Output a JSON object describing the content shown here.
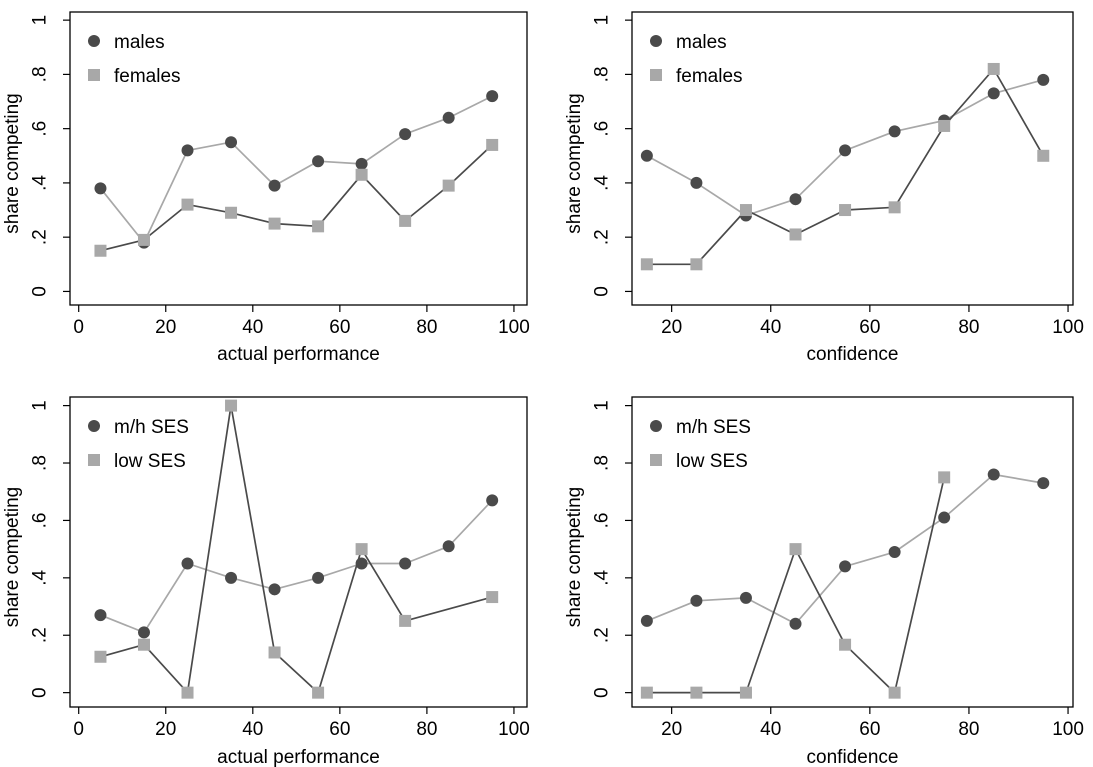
{
  "colors": {
    "dark": "#4a4a4a",
    "light": "#a8a8a8",
    "frame": "#000000",
    "background": "#ffffff"
  },
  "chart_data": [
    {
      "type": "line",
      "xlabel": "actual performance",
      "ylabel": "share competing",
      "xlim": [
        -2,
        103
      ],
      "ylim": [
        -0.05,
        1.03
      ],
      "xticks": [
        0,
        20,
        40,
        60,
        80,
        100
      ],
      "xtick_labels": [
        "0",
        "20",
        "40",
        "60",
        "80",
        "100"
      ],
      "yticks": [
        0,
        0.2,
        0.4,
        0.6,
        0.8,
        1
      ],
      "ytick_labels": [
        "0",
        ".2",
        ".4",
        ".6",
        ".8",
        "1"
      ],
      "legend_position": "top-left",
      "grid": false,
      "series": [
        {
          "name": "males",
          "marker": "circle",
          "color": "light",
          "markercolor": "dark",
          "x": [
            5,
            15,
            25,
            35,
            45,
            55,
            65,
            75,
            85,
            95
          ],
          "y": [
            0.38,
            0.18,
            0.52,
            0.55,
            0.39,
            0.48,
            0.47,
            0.58,
            0.64,
            0.72
          ]
        },
        {
          "name": "females",
          "marker": "square",
          "color": "dark",
          "markercolor": "light",
          "x": [
            5,
            15,
            25,
            35,
            45,
            55,
            65,
            75,
            85,
            95
          ],
          "y": [
            0.15,
            0.19,
            0.32,
            0.29,
            0.25,
            0.24,
            0.43,
            0.26,
            0.39,
            0.54
          ]
        }
      ]
    },
    {
      "type": "line",
      "xlabel": "confidence",
      "ylabel": "share competing",
      "xlim": [
        12,
        101
      ],
      "ylim": [
        -0.05,
        1.03
      ],
      "xticks": [
        20,
        40,
        60,
        80,
        100
      ],
      "xtick_labels": [
        "20",
        "40",
        "60",
        "80",
        "100"
      ],
      "yticks": [
        0,
        0.2,
        0.4,
        0.6,
        0.8,
        1
      ],
      "ytick_labels": [
        "0",
        ".2",
        ".4",
        ".6",
        ".8",
        "1"
      ],
      "legend_position": "top-left",
      "grid": false,
      "series": [
        {
          "name": "males",
          "marker": "circle",
          "color": "light",
          "markercolor": "dark",
          "x": [
            15,
            25,
            35,
            45,
            55,
            65,
            75,
            85,
            95
          ],
          "y": [
            0.5,
            0.4,
            0.28,
            0.34,
            0.52,
            0.59,
            0.63,
            0.73,
            0.78
          ]
        },
        {
          "name": "females",
          "marker": "square",
          "color": "dark",
          "markercolor": "light",
          "x": [
            15,
            25,
            35,
            45,
            55,
            65,
            75,
            85,
            95
          ],
          "y": [
            0.1,
            0.1,
            0.3,
            0.21,
            0.3,
            0.31,
            0.61,
            0.82,
            0.5
          ]
        }
      ]
    },
    {
      "type": "line",
      "xlabel": "actual performance",
      "ylabel": "share competing",
      "xlim": [
        -2,
        103
      ],
      "ylim": [
        -0.05,
        1.03
      ],
      "xticks": [
        0,
        20,
        40,
        60,
        80,
        100
      ],
      "xtick_labels": [
        "0",
        "20",
        "40",
        "60",
        "80",
        "100"
      ],
      "yticks": [
        0,
        0.2,
        0.4,
        0.6,
        0.8,
        1
      ],
      "ytick_labels": [
        "0",
        ".2",
        ".4",
        ".6",
        ".8",
        "1"
      ],
      "legend_position": "top-left",
      "grid": false,
      "series": [
        {
          "name": "m/h SES",
          "marker": "circle",
          "color": "light",
          "markercolor": "dark",
          "x": [
            5,
            15,
            25,
            35,
            45,
            55,
            65,
            75,
            85,
            95
          ],
          "y": [
            0.27,
            0.21,
            0.45,
            0.4,
            0.36,
            0.4,
            0.45,
            0.45,
            0.51,
            0.67
          ]
        },
        {
          "name": "low SES",
          "marker": "square",
          "color": "dark",
          "markercolor": "light",
          "x": [
            5,
            15,
            25,
            35,
            45,
            55,
            65,
            75,
            95
          ],
          "y": [
            0.125,
            0.167,
            0.0,
            1.0,
            0.14,
            0.0,
            0.5,
            0.25,
            0.333
          ]
        }
      ]
    },
    {
      "type": "line",
      "xlabel": "confidence",
      "ylabel": "share competing",
      "xlim": [
        12,
        101
      ],
      "ylim": [
        -0.05,
        1.03
      ],
      "xticks": [
        20,
        40,
        60,
        80,
        100
      ],
      "xtick_labels": [
        "20",
        "40",
        "60",
        "80",
        "100"
      ],
      "yticks": [
        0,
        0.2,
        0.4,
        0.6,
        0.8,
        1
      ],
      "ytick_labels": [
        "0",
        ".2",
        ".4",
        ".6",
        ".8",
        "1"
      ],
      "legend_position": "top-left",
      "grid": false,
      "series": [
        {
          "name": "m/h SES",
          "marker": "circle",
          "color": "light",
          "markercolor": "dark",
          "x": [
            15,
            25,
            35,
            45,
            55,
            65,
            75,
            85,
            95
          ],
          "y": [
            0.25,
            0.32,
            0.33,
            0.24,
            0.44,
            0.49,
            0.61,
            0.76,
            0.73
          ]
        },
        {
          "name": "low SES",
          "marker": "square",
          "color": "dark",
          "markercolor": "light",
          "x": [
            15,
            25,
            35,
            45,
            55,
            65,
            75
          ],
          "y": [
            0.0,
            0.0,
            0.0,
            0.5,
            0.167,
            0.0,
            0.75
          ]
        }
      ]
    }
  ]
}
